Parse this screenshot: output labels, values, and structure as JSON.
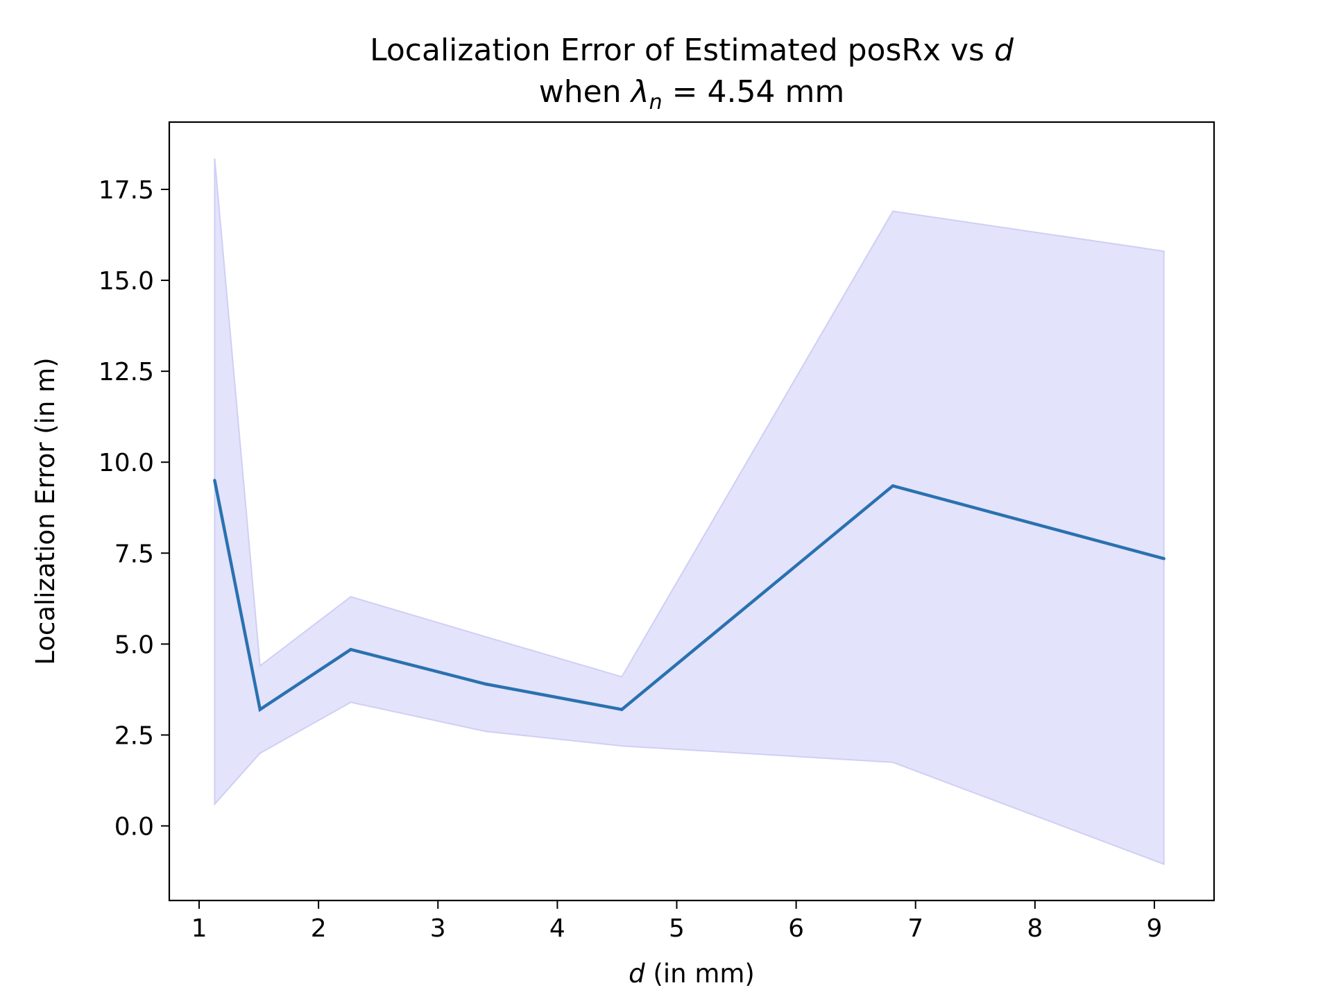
{
  "chart_data": {
    "type": "line",
    "title_line1_text": "Localization Error of Estimated posRx vs ",
    "title_line1_var": "d",
    "title_line2_prefix": "when ",
    "title_line2_symbol": "λ",
    "title_line2_sub": "n",
    "title_line2_suffix": " = 4.54 mm",
    "xlabel_var": "d",
    "xlabel_text": " (in mm)",
    "ylabel": "Localization Error (in m)",
    "xlim": [
      0.75,
      9.5
    ],
    "ylim": [
      -2.05,
      19.35
    ],
    "xticks": [
      1,
      2,
      3,
      4,
      5,
      6,
      7,
      8,
      9
    ],
    "xtick_labels": [
      "1",
      "2",
      "3",
      "4",
      "5",
      "6",
      "7",
      "8",
      "9"
    ],
    "yticks": [
      0.0,
      2.5,
      5.0,
      7.5,
      10.0,
      12.5,
      15.0,
      17.5
    ],
    "ytick_labels": [
      "0.0",
      "2.5",
      "5.0",
      "7.5",
      "10.0",
      "12.5",
      "15.0",
      "17.5"
    ],
    "x": [
      1.13,
      1.51,
      2.27,
      3.4,
      4.54,
      6.81,
      9.08
    ],
    "series": [
      {
        "values": [
          9.5,
          3.2,
          4.85,
          3.9,
          3.2,
          9.35,
          7.35
        ],
        "lower": [
          0.6,
          2.0,
          3.4,
          2.6,
          2.2,
          1.75,
          -1.05
        ],
        "upper": [
          18.35,
          4.4,
          6.3,
          5.2,
          4.1,
          16.9,
          15.8
        ],
        "color": "#2a71b0",
        "band_color": "#e3e3fb",
        "band_edge_color": "#cfcff5"
      }
    ],
    "grid": false,
    "legend": "none"
  }
}
